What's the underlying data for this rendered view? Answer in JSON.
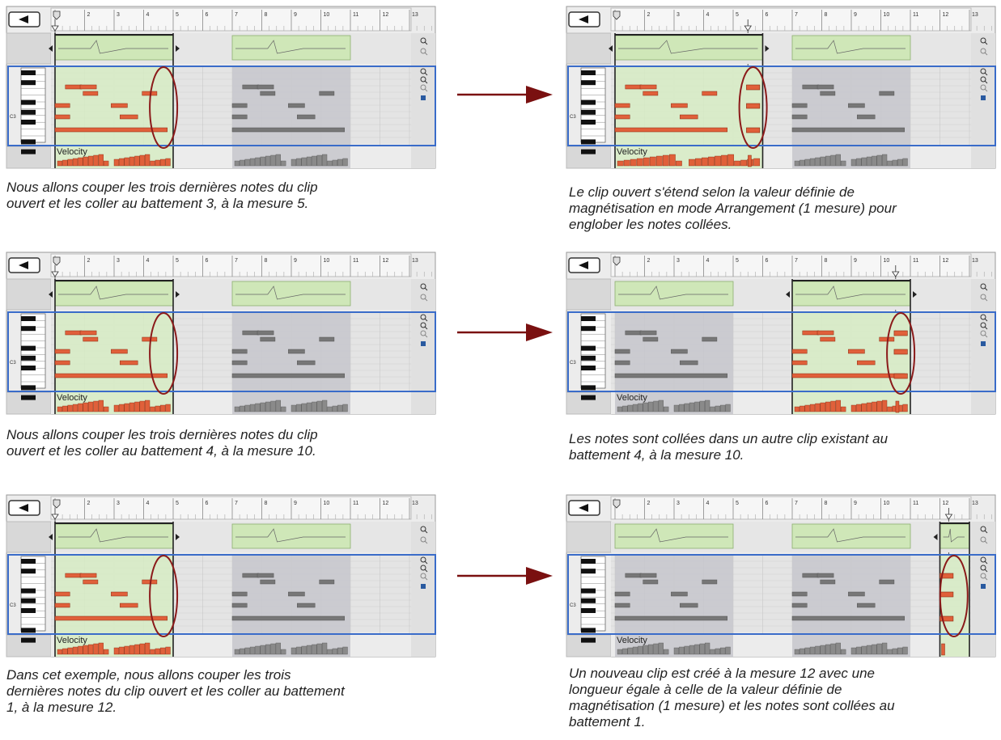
{
  "ruler": {
    "numbers": [
      "2",
      "3",
      "4",
      "5",
      "6",
      "7",
      "8",
      "9",
      "10",
      "11",
      "12",
      "13"
    ],
    "pitch_label": "C3",
    "velocity_label": "Velocity"
  },
  "colors": {
    "clip_open": "#d7ecc4",
    "clip_closed": "#c7c7cd",
    "note_open": "#e0603a",
    "note_closed": "#777777",
    "selection_box": "#3a6cc9",
    "ellipse": "#8b1a1a",
    "arrow": "#7a1010"
  },
  "icons": {
    "back": "back-arrow-icon",
    "zoom_in": "zoom-in-icon",
    "zoom_out": "zoom-out-icon",
    "fold": "fold-icon"
  },
  "panels": [
    {
      "id": "r1-before",
      "clips": [
        [
          1.0,
          4.9,
          "open"
        ],
        [
          7.0,
          10.9,
          "closed"
        ]
      ],
      "pasted": [],
      "ellipse_at": 4.4
    },
    {
      "id": "r1-after",
      "clips": [
        [
          1.0,
          5.9,
          "open"
        ],
        [
          7.0,
          10.9,
          "closed"
        ]
      ],
      "pasted": [
        5.45
      ],
      "ellipse_at": 5.4
    },
    {
      "id": "r2-before",
      "clips": [
        [
          1.0,
          4.9,
          "open"
        ],
        [
          7.0,
          10.9,
          "closed"
        ]
      ],
      "pasted": [],
      "ellipse_at": 4.4
    },
    {
      "id": "r2-after",
      "clips": [
        [
          1.0,
          4.9,
          "closed"
        ],
        [
          7.0,
          10.9,
          "open"
        ]
      ],
      "pasted": [
        10.45
      ],
      "ellipse_at": 10.4
    },
    {
      "id": "r3-before",
      "clips": [
        [
          1.0,
          4.9,
          "open"
        ],
        [
          7.0,
          10.9,
          "closed"
        ]
      ],
      "pasted": [],
      "ellipse_at": 4.4
    },
    {
      "id": "r3-after",
      "clips": [
        [
          1.0,
          4.9,
          "closed"
        ],
        [
          7.0,
          10.9,
          "closed"
        ],
        [
          12.0,
          12.9,
          "open"
        ]
      ],
      "pasted": [
        12.0
      ],
      "ellipse_at": 12.2
    }
  ],
  "captions": [
    {
      "lines": [
        "Nous allons couper les trois dernières notes du clip",
        "ouvert et les coller au battement 3, à la mesure 5."
      ]
    },
    {
      "lines": [
        "Le clip ouvert s'étend selon la valeur définie de",
        "magnétisation en mode Arrangement (1 mesure) pour",
        "englober les notes collées."
      ]
    },
    {
      "lines": [
        "Nous allons couper les trois dernières notes du clip",
        "ouvert et les coller au battement 4, à la mesure 10."
      ]
    },
    {
      "lines": [
        "Les notes sont collées dans un autre clip existant au",
        "battement 4, à la mesure 10."
      ]
    },
    {
      "lines": [
        "Dans cet exemple, nous allons couper les trois",
        "dernières notes du clip ouvert et les coller au battement",
        "1, à la mesure 12."
      ]
    },
    {
      "lines": [
        "Un nouveau clip est créé à la mesure 12 avec une",
        "longueur égale à celle de la valeur définie de",
        "magnétisation (1 mesure) et les notes sont collées au",
        "battement 1."
      ]
    }
  ]
}
